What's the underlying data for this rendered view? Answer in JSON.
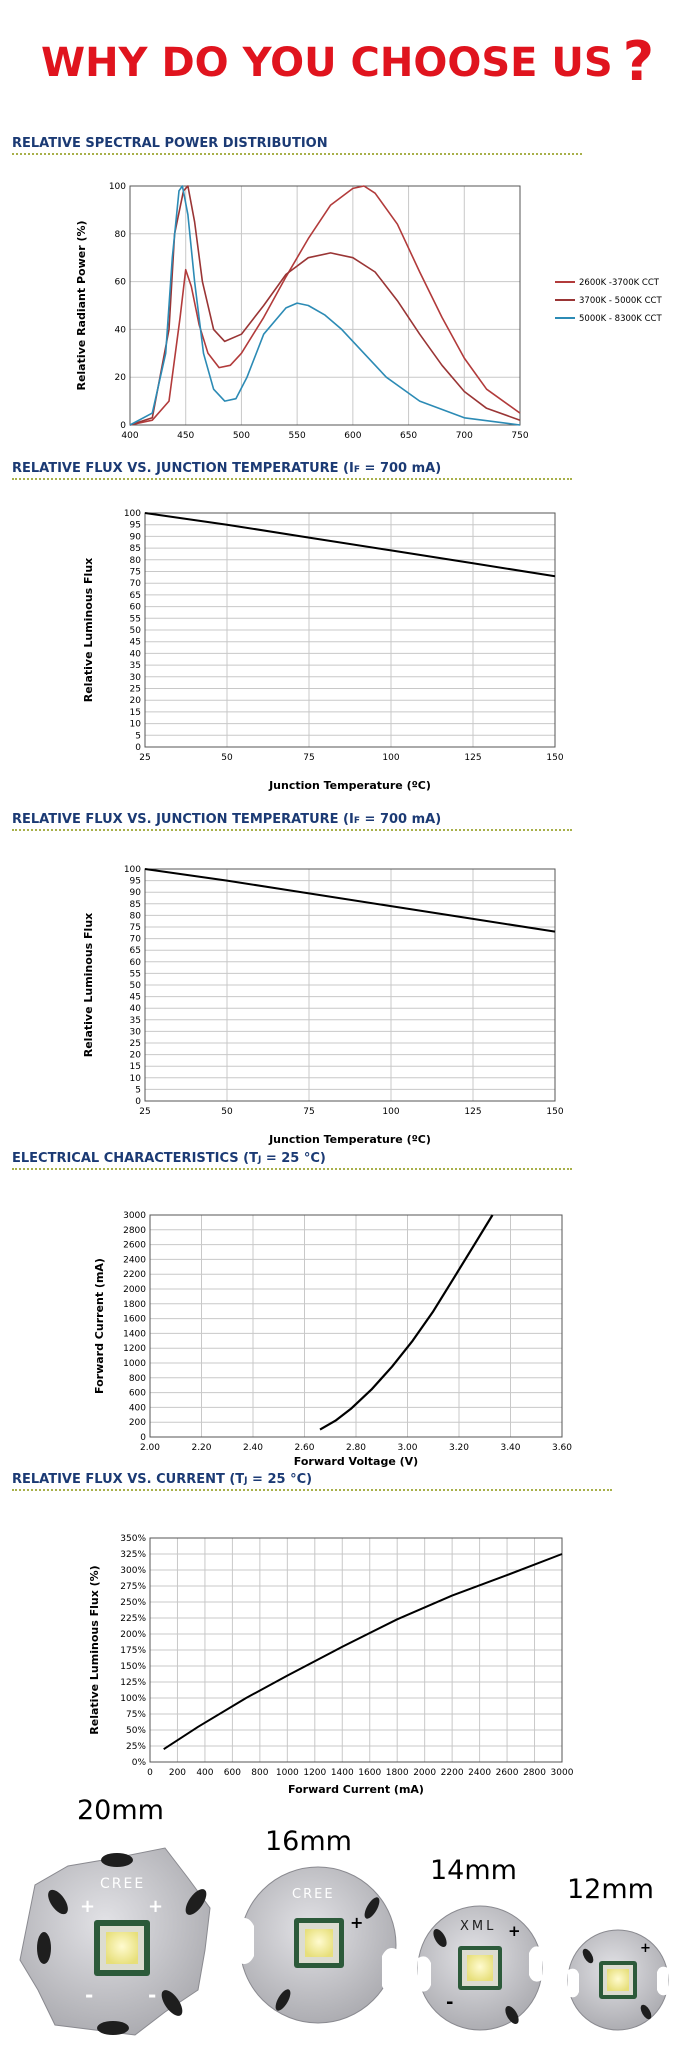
{
  "header": {
    "title": "WHY DO YOU CHOOSE US",
    "mark": "?"
  },
  "chart_data": [
    {
      "type": "line",
      "title": "RELATIVE SPECTRAL POWER DISTRIBUTION",
      "xlabel": "",
      "ylabel": "Relative Radiant Power (%)",
      "xlim": [
        400,
        750
      ],
      "ylim": [
        0,
        100
      ],
      "xticks": [
        400,
        450,
        500,
        550,
        600,
        650,
        700,
        750
      ],
      "yticks": [
        0,
        20,
        40,
        60,
        80,
        100
      ],
      "grid": true,
      "legend": "right",
      "series": [
        {
          "name": "2600K -3700K CCT",
          "color": "#b23b3b",
          "x": [
            400,
            420,
            435,
            445,
            450,
            455,
            462,
            470,
            480,
            490,
            500,
            520,
            540,
            560,
            580,
            600,
            610,
            620,
            640,
            660,
            680,
            700,
            720,
            750
          ],
          "y": [
            0,
            2,
            10,
            45,
            65,
            58,
            42,
            30,
            24,
            25,
            30,
            45,
            62,
            78,
            92,
            99,
            100,
            97,
            84,
            64,
            45,
            28,
            15,
            5
          ]
        },
        {
          "name": "3700K - 5000K CCT",
          "color": "#9a3535",
          "x": [
            400,
            420,
            435,
            440,
            448,
            452,
            458,
            465,
            475,
            485,
            500,
            520,
            540,
            560,
            580,
            600,
            620,
            640,
            660,
            680,
            700,
            720,
            750
          ],
          "y": [
            0,
            3,
            40,
            80,
            98,
            100,
            85,
            60,
            40,
            35,
            38,
            50,
            63,
            70,
            72,
            70,
            64,
            52,
            38,
            25,
            14,
            7,
            2
          ]
        },
        {
          "name": "5000K - 8300K CCT",
          "color": "#2c8bb5",
          "x": [
            400,
            420,
            432,
            438,
            444,
            447,
            452,
            458,
            466,
            475,
            485,
            495,
            505,
            520,
            540,
            550,
            560,
            575,
            590,
            610,
            630,
            660,
            700,
            750
          ],
          "y": [
            0,
            5,
            30,
            70,
            98,
            100,
            88,
            60,
            30,
            15,
            10,
            11,
            20,
            38,
            49,
            51,
            50,
            46,
            40,
            30,
            20,
            10,
            3,
            0
          ]
        }
      ]
    },
    {
      "type": "line",
      "title": "RELATIVE FLUX VS. JUNCTION TEMPERATURE (I",
      "title_sub": "F",
      "title_tail": " = 700 mA)",
      "xlabel": "Junction Temperature (ºC)",
      "ylabel": "Relative Luminous Flux",
      "xlim": [
        25,
        150
      ],
      "ylim": [
        0,
        100
      ],
      "xticks": [
        25,
        50,
        75,
        100,
        125,
        150
      ],
      "yticks": [
        0,
        5,
        10,
        15,
        20,
        25,
        30,
        35,
        40,
        45,
        50,
        55,
        60,
        65,
        70,
        75,
        80,
        85,
        90,
        95,
        100
      ],
      "grid": true,
      "series": [
        {
          "x": [
            25,
            50,
            75,
            100,
            125,
            150
          ],
          "y": [
            100,
            95,
            89.5,
            84,
            78.5,
            73
          ],
          "color": "#000000"
        }
      ]
    },
    {
      "type": "line",
      "title": "RELATIVE FLUX VS. JUNCTION TEMPERATURE (I",
      "title_sub": "F",
      "title_tail": " = 700 mA)",
      "xlabel": "Junction Temperature (ºC)",
      "ylabel": "Relative Luminous Flux",
      "xlim": [
        25,
        150
      ],
      "ylim": [
        0,
        100
      ],
      "xticks": [
        25,
        50,
        75,
        100,
        125,
        150
      ],
      "yticks": [
        0,
        5,
        10,
        15,
        20,
        25,
        30,
        35,
        40,
        45,
        50,
        55,
        60,
        65,
        70,
        75,
        80,
        85,
        90,
        95,
        100
      ],
      "grid": true,
      "series": [
        {
          "x": [
            25,
            50,
            75,
            100,
            125,
            150
          ],
          "y": [
            100,
            95,
            89.5,
            84,
            78.5,
            73
          ],
          "color": "#000000"
        }
      ]
    },
    {
      "type": "line",
      "title": "ELECTRICAL CHARACTERISTICS (T",
      "title_sub": "J",
      "title_tail": " = 25 °C)",
      "xlabel": "Forward Voltage (V)",
      "ylabel": "Forward Current (mA)",
      "xlim": [
        2.0,
        3.6
      ],
      "ylim": [
        0,
        3000
      ],
      "xticks": [
        "2.00",
        "2.20",
        "2.40",
        "2.60",
        "2.80",
        "3.00",
        "3.20",
        "3.40",
        "3.60"
      ],
      "yticks": [
        0,
        200,
        400,
        600,
        800,
        1000,
        1200,
        1400,
        1600,
        1800,
        2000,
        2200,
        2400,
        2600,
        2800,
        3000
      ],
      "grid": true,
      "series": [
        {
          "x": [
            2.66,
            2.72,
            2.78,
            2.86,
            2.94,
            3.02,
            3.1,
            3.18,
            3.26,
            3.33
          ],
          "y": [
            100,
            220,
            380,
            640,
            950,
            1300,
            1700,
            2150,
            2600,
            3000
          ],
          "color": "#000000"
        }
      ]
    },
    {
      "type": "line",
      "title": "RELATIVE FLUX VS. CURRENT (T",
      "title_sub": "J",
      "title_tail": " = 25 °C)",
      "xlabel": "Forward Current (mA)",
      "ylabel": "Relative Luminous Flux (%)",
      "xlim": [
        0,
        3000
      ],
      "ylim": [
        0,
        350
      ],
      "xticks": [
        0,
        200,
        400,
        600,
        800,
        1000,
        1200,
        1400,
        1600,
        1800,
        2000,
        2200,
        2400,
        2600,
        2800,
        3000
      ],
      "yticks": [
        0,
        25,
        50,
        75,
        100,
        125,
        150,
        175,
        200,
        225,
        250,
        275,
        300,
        325,
        350
      ],
      "ytick_suffix": "%",
      "grid": true,
      "series": [
        {
          "x": [
            100,
            350,
            700,
            1000,
            1400,
            1800,
            2200,
            2600,
            3000
          ],
          "y": [
            20,
            55,
            100,
            135,
            180,
            223,
            260,
            292,
            325
          ],
          "color": "#000000"
        }
      ]
    }
  ],
  "boards": [
    {
      "label": "20mm",
      "brand": "CREE"
    },
    {
      "label": "16mm",
      "brand": "CREE"
    },
    {
      "label": "14mm",
      "brand": "XML"
    },
    {
      "label": "12mm",
      "brand": ""
    }
  ]
}
